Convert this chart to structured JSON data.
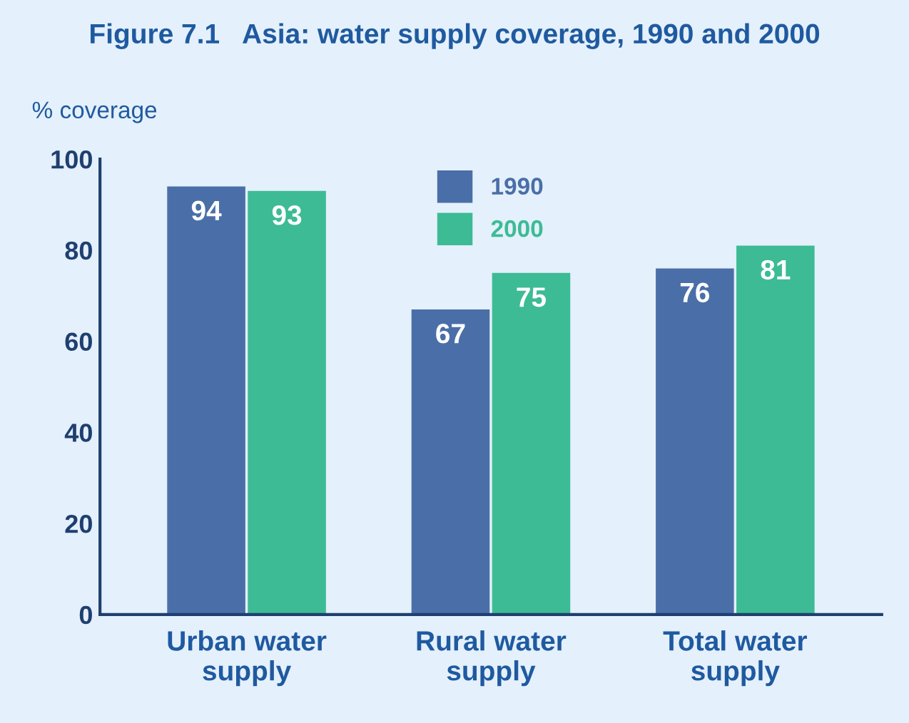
{
  "chart_data": {
    "type": "bar",
    "title": "Figure 7.1   Asia: water supply coverage, 1990 and 2000",
    "ylabel": "% coverage",
    "categories": [
      "Urban water\nsupply",
      "Rural water\nsupply",
      "Total water\nsupply"
    ],
    "series": [
      {
        "name": "1990",
        "color": "#4a6fa8",
        "values": [
          94,
          67,
          76
        ]
      },
      {
        "name": "2000",
        "color": "#3dbb95",
        "values": [
          93,
          75,
          81
        ]
      }
    ],
    "ylim": [
      0,
      100
    ],
    "yticks": [
      0,
      20,
      40,
      60,
      80,
      100
    ],
    "grid": false,
    "legend": "top",
    "data_labels": true
  }
}
